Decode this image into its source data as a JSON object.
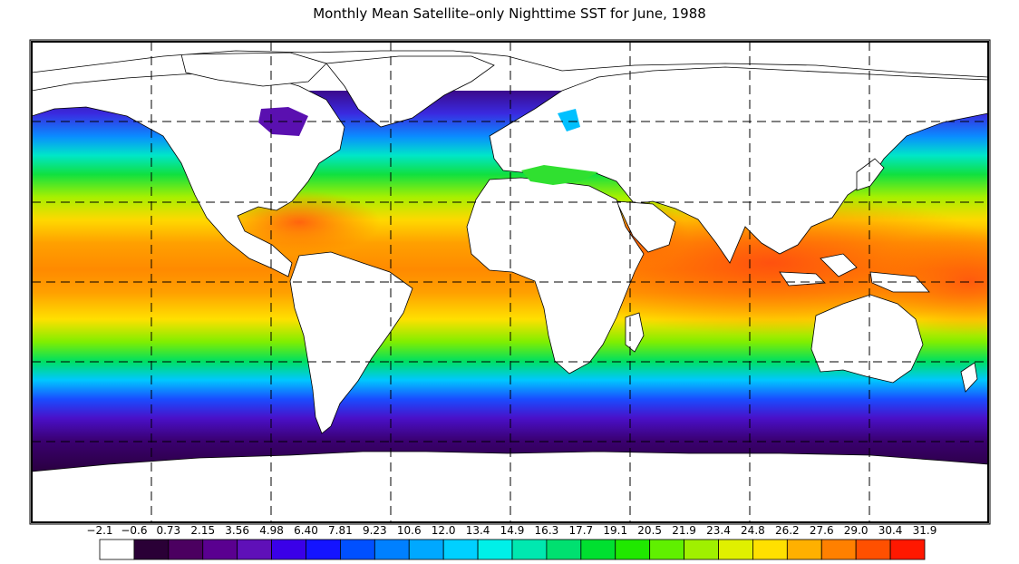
{
  "title": "Monthly Mean Satellite–only Nighttime SST for June, 1988",
  "colorbar": {
    "tick_labels": [
      "−2.1",
      "−0.6",
      "0.73",
      "2.15",
      "3.56",
      "4.98",
      "6.40",
      "7.81",
      "9.23",
      "10.6",
      "12.0",
      "13.4",
      "14.9",
      "16.3",
      "17.7",
      "19.1",
      "20.5",
      "21.9",
      "23.4",
      "24.8",
      "26.2",
      "27.6",
      "29.0",
      "30.4",
      "31.9"
    ],
    "colors": [
      "#ffffff",
      "#2a0036",
      "#4b0060",
      "#5a0090",
      "#5f10b8",
      "#3a00e8",
      "#1414ff",
      "#0050ff",
      "#0080ff",
      "#00a8ff",
      "#00d0ff",
      "#00f0e8",
      "#00e8b0",
      "#00e070",
      "#00e030",
      "#20e800",
      "#60f000",
      "#a0f000",
      "#e0f000",
      "#ffe000",
      "#ffb000",
      "#ff8000",
      "#ff5000",
      "#ff1800"
    ]
  },
  "map": {
    "colors": {
      "land": "#ffffff",
      "frame": "#000000",
      "gridline": "#000000"
    }
  }
}
